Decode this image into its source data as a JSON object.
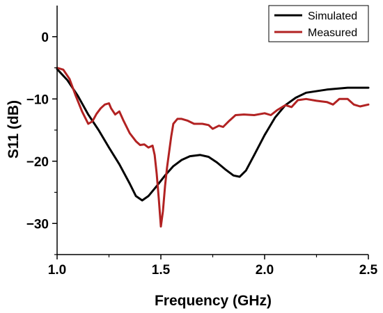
{
  "chart_data": {
    "type": "line",
    "title": "",
    "xlabel": "Frequency (GHz)",
    "ylabel": "S11 (dB)",
    "xlim": [
      1.0,
      2.5
    ],
    "ylim": [
      -35,
      5
    ],
    "x_ticks": [
      1.0,
      1.5,
      2.0,
      2.5
    ],
    "x_tick_labels": [
      "1.0",
      "1.5",
      "2.0",
      "2.5"
    ],
    "y_ticks": [
      0,
      -10,
      -20,
      -30
    ],
    "y_tick_labels": [
      "0",
      "−10",
      "−20",
      "−30"
    ],
    "grid": false,
    "legend_position": "top-right",
    "series": [
      {
        "name": "Simulated",
        "color": "#000000",
        "points": [
          [
            1.0,
            -5.2
          ],
          [
            1.05,
            -7.0
          ],
          [
            1.1,
            -9.5
          ],
          [
            1.15,
            -12.5
          ],
          [
            1.2,
            -15.0
          ],
          [
            1.25,
            -17.8
          ],
          [
            1.3,
            -20.5
          ],
          [
            1.35,
            -23.6
          ],
          [
            1.38,
            -25.6
          ],
          [
            1.41,
            -26.3
          ],
          [
            1.44,
            -25.6
          ],
          [
            1.48,
            -24.0
          ],
          [
            1.52,
            -22.3
          ],
          [
            1.56,
            -20.8
          ],
          [
            1.6,
            -19.8
          ],
          [
            1.64,
            -19.2
          ],
          [
            1.69,
            -19.0
          ],
          [
            1.73,
            -19.3
          ],
          [
            1.77,
            -20.2
          ],
          [
            1.81,
            -21.3
          ],
          [
            1.85,
            -22.3
          ],
          [
            1.88,
            -22.5
          ],
          [
            1.91,
            -21.5
          ],
          [
            1.95,
            -19.0
          ],
          [
            2.0,
            -15.8
          ],
          [
            2.05,
            -13.0
          ],
          [
            2.1,
            -11.0
          ],
          [
            2.15,
            -9.8
          ],
          [
            2.2,
            -9.0
          ],
          [
            2.3,
            -8.5
          ],
          [
            2.4,
            -8.2
          ],
          [
            2.5,
            -8.2
          ]
        ]
      },
      {
        "name": "Measured",
        "color": "#b22222",
        "points": [
          [
            1.0,
            -5.0
          ],
          [
            1.03,
            -5.3
          ],
          [
            1.06,
            -6.8
          ],
          [
            1.09,
            -9.5
          ],
          [
            1.12,
            -12.0
          ],
          [
            1.15,
            -14.0
          ],
          [
            1.17,
            -13.6
          ],
          [
            1.19,
            -12.4
          ],
          [
            1.21,
            -11.5
          ],
          [
            1.23,
            -10.9
          ],
          [
            1.25,
            -10.7
          ],
          [
            1.26,
            -11.5
          ],
          [
            1.28,
            -12.5
          ],
          [
            1.3,
            -12.0
          ],
          [
            1.32,
            -13.5
          ],
          [
            1.35,
            -15.5
          ],
          [
            1.38,
            -16.8
          ],
          [
            1.4,
            -17.4
          ],
          [
            1.42,
            -17.3
          ],
          [
            1.44,
            -17.8
          ],
          [
            1.46,
            -17.5
          ],
          [
            1.47,
            -19.0
          ],
          [
            1.48,
            -22.0
          ],
          [
            1.49,
            -26.0
          ],
          [
            1.5,
            -30.5
          ],
          [
            1.51,
            -28.0
          ],
          [
            1.52,
            -24.0
          ],
          [
            1.53,
            -21.0
          ],
          [
            1.54,
            -18.5
          ],
          [
            1.55,
            -16.0
          ],
          [
            1.56,
            -14.0
          ],
          [
            1.58,
            -13.2
          ],
          [
            1.6,
            -13.2
          ],
          [
            1.63,
            -13.5
          ],
          [
            1.66,
            -14.0
          ],
          [
            1.7,
            -14.0
          ],
          [
            1.73,
            -14.2
          ],
          [
            1.75,
            -14.8
          ],
          [
            1.78,
            -14.3
          ],
          [
            1.8,
            -14.5
          ],
          [
            1.83,
            -13.5
          ],
          [
            1.86,
            -12.6
          ],
          [
            1.9,
            -12.5
          ],
          [
            1.95,
            -12.6
          ],
          [
            2.0,
            -12.3
          ],
          [
            2.03,
            -12.6
          ],
          [
            2.06,
            -11.8
          ],
          [
            2.1,
            -11.0
          ],
          [
            2.13,
            -11.3
          ],
          [
            2.16,
            -10.2
          ],
          [
            2.2,
            -10.0
          ],
          [
            2.25,
            -10.3
          ],
          [
            2.3,
            -10.5
          ],
          [
            2.33,
            -10.9
          ],
          [
            2.36,
            -10.0
          ],
          [
            2.4,
            -10.0
          ],
          [
            2.43,
            -10.9
          ],
          [
            2.46,
            -11.2
          ],
          [
            2.5,
            -10.9
          ]
        ]
      }
    ]
  }
}
